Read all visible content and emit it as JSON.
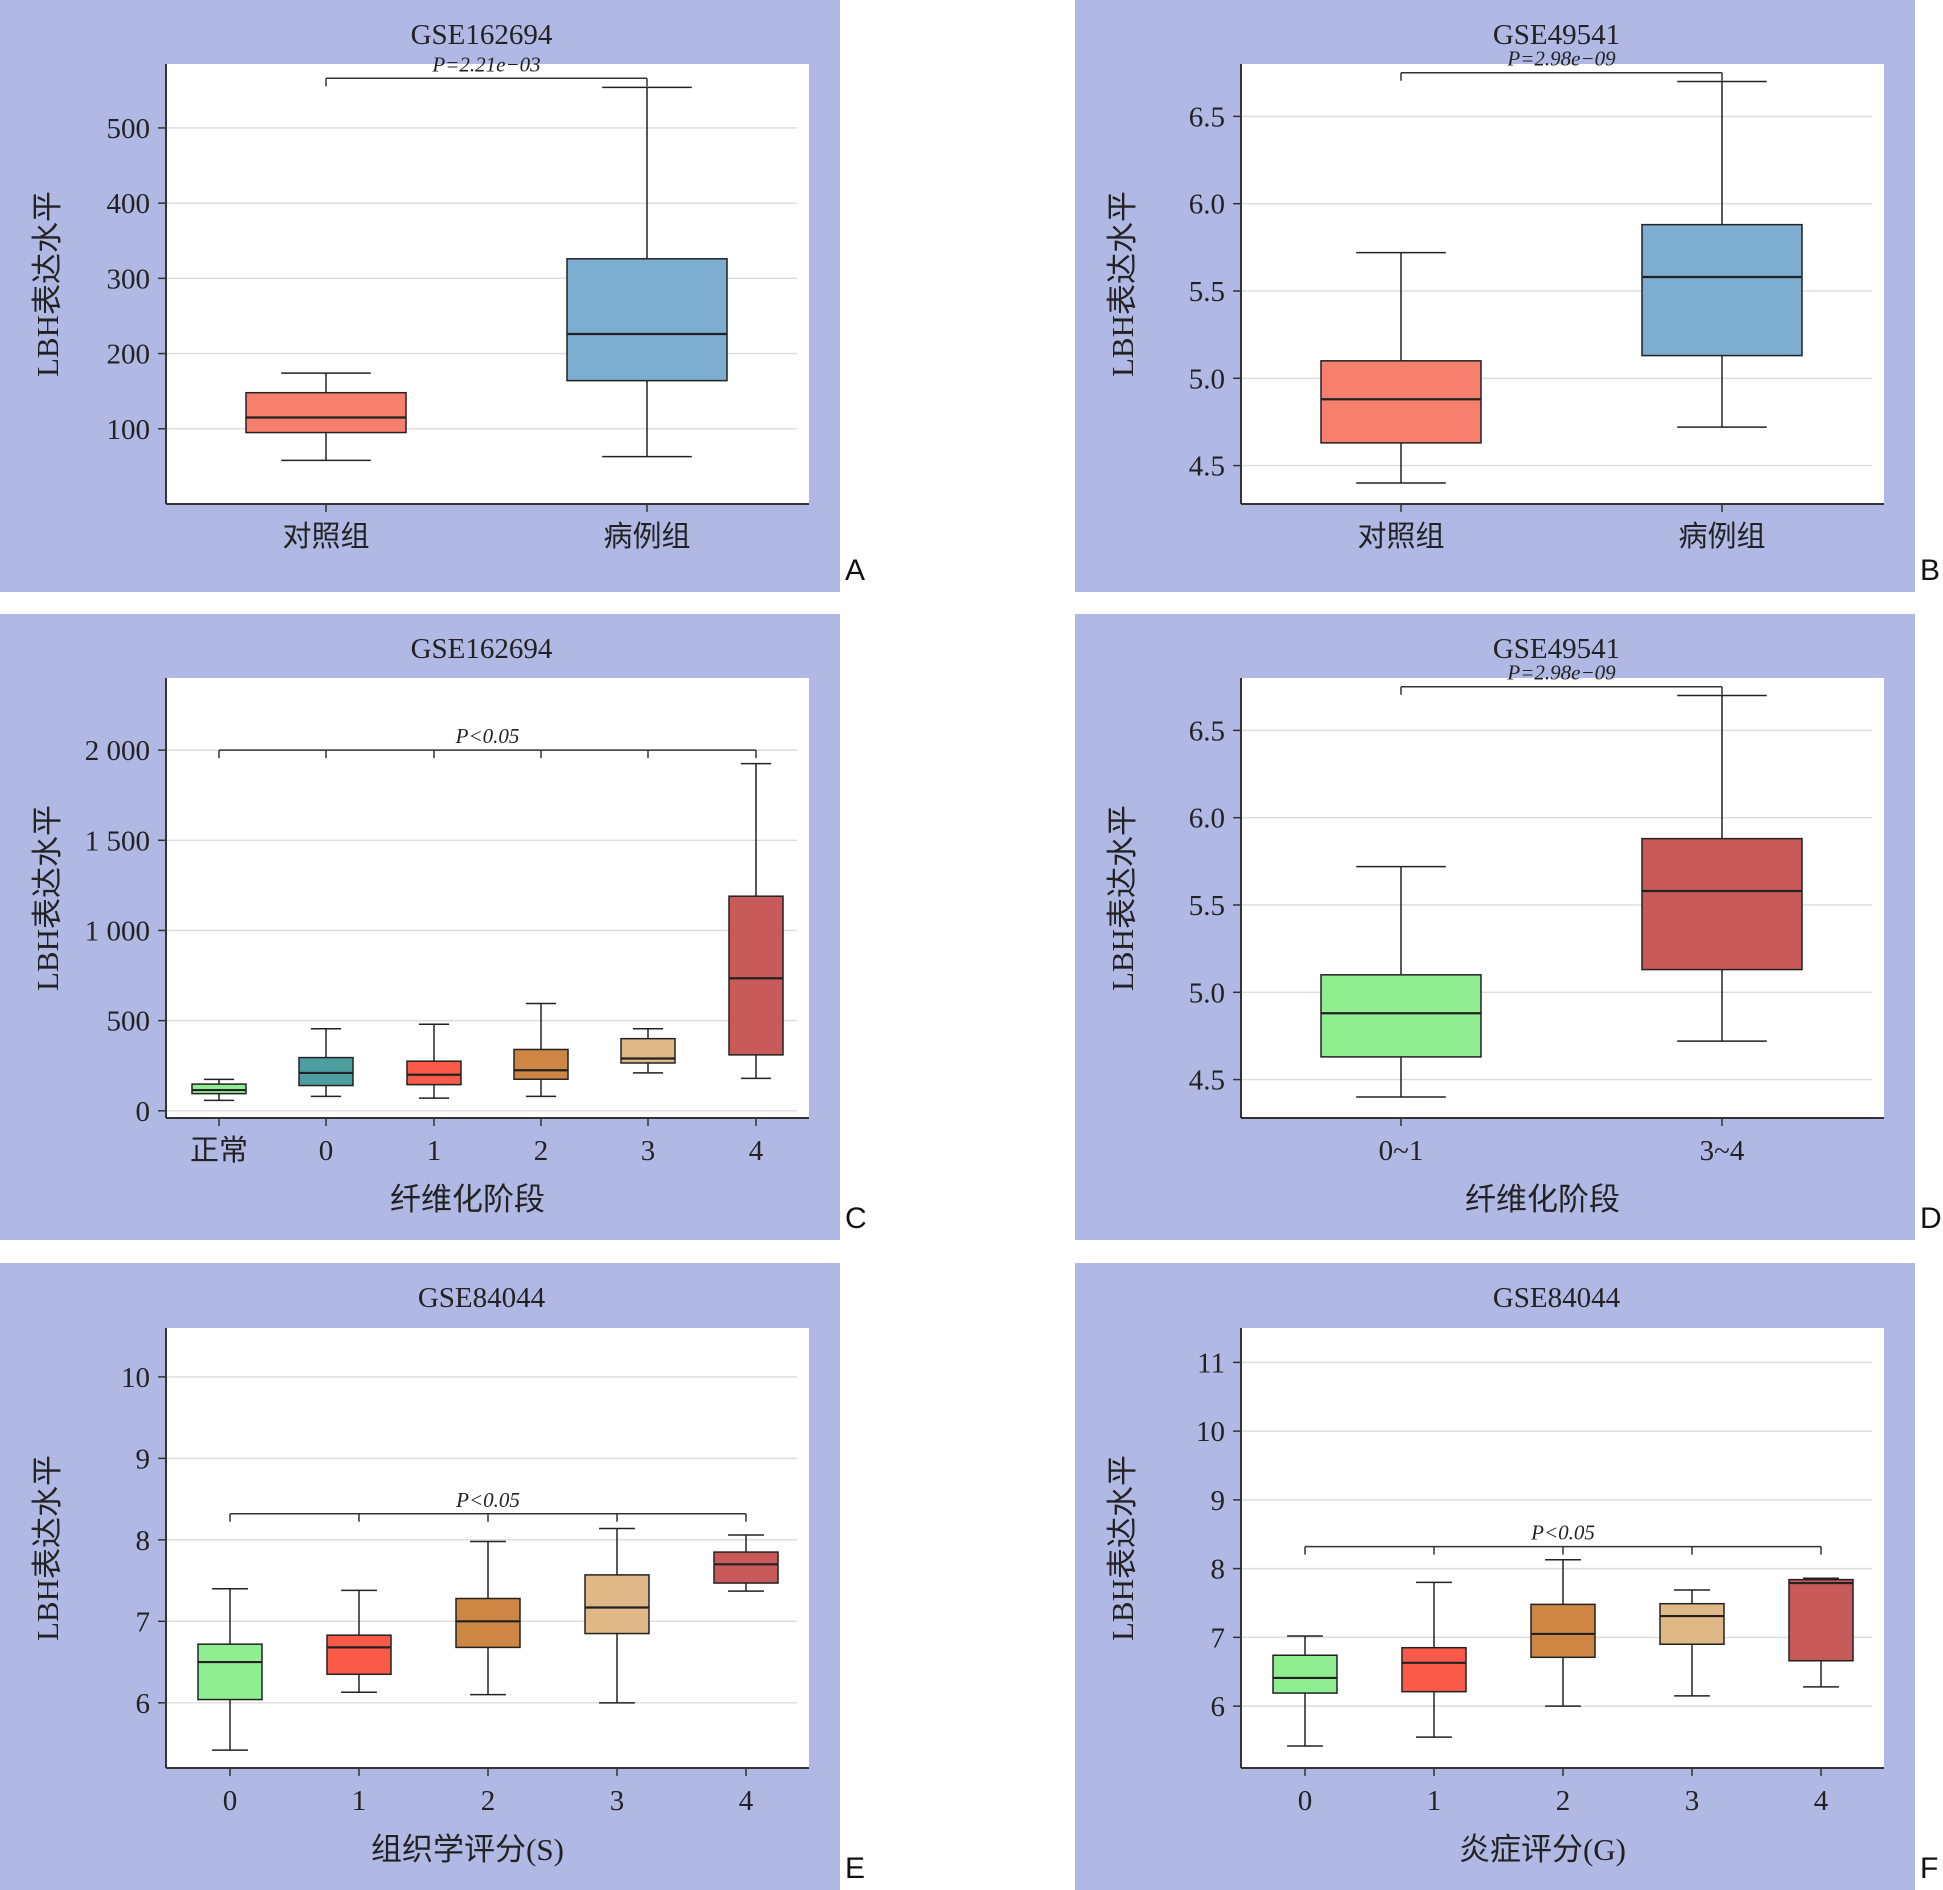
{
  "chart_data": [
    {
      "panel": "A",
      "type": "box",
      "title": "GSE162694",
      "ylabel": "LBH表达水平",
      "xlabel": "",
      "categories": [
        "对照组",
        "病例组"
      ],
      "boxes": [
        {
          "whisker_low": 58,
          "q1": 95,
          "median": 115,
          "q3": 148,
          "whisker_high": 174,
          "color": "#f67f6e"
        },
        {
          "whisker_low": 63,
          "q1": 164,
          "median": 226,
          "q3": 326,
          "whisker_high": 554,
          "color": "#7eadd2"
        }
      ],
      "ylim": [
        0,
        585
      ],
      "yticks": [
        100,
        200,
        300,
        400,
        500
      ],
      "ytick_labels": [
        "100",
        "200",
        "300",
        "400",
        "500"
      ],
      "annotations": [
        {
          "text": "P=2.21e−03",
          "from": 0,
          "to": 1,
          "y": 566
        }
      ]
    },
    {
      "panel": "B",
      "type": "box",
      "title": "GSE49541",
      "ylabel": "LBH表达水平",
      "xlabel": "",
      "categories": [
        "对照组",
        "病例组"
      ],
      "boxes": [
        {
          "whisker_low": 4.4,
          "q1": 4.63,
          "median": 4.88,
          "q3": 5.1,
          "whisker_high": 5.72,
          "color": "#f67f6e"
        },
        {
          "whisker_low": 4.72,
          "q1": 5.13,
          "median": 5.58,
          "q3": 5.88,
          "whisker_high": 6.7,
          "color": "#7eadd2"
        }
      ],
      "ylim": [
        4.28,
        6.8
      ],
      "yticks": [
        4.5,
        5.0,
        5.5,
        6.0,
        6.5
      ],
      "ytick_labels": [
        "4.5",
        "5.0",
        "5.5",
        "6.0",
        "6.5"
      ],
      "annotations": [
        {
          "text": "P=2.98e−09",
          "from": 0,
          "to": 1,
          "y": 6.75
        }
      ]
    },
    {
      "panel": "C",
      "type": "box",
      "title": "GSE162694",
      "ylabel": "LBH表达水平",
      "xlabel": "纤维化阶段",
      "categories": [
        "正常",
        "0",
        "1",
        "2",
        "3",
        "4"
      ],
      "boxes": [
        {
          "whisker_low": 58,
          "q1": 95,
          "median": 115,
          "q3": 148,
          "whisker_high": 174,
          "color": "#90ee90"
        },
        {
          "whisker_low": 80,
          "q1": 140,
          "median": 210,
          "q3": 295,
          "whisker_high": 455,
          "color": "#4d9ea0"
        },
        {
          "whisker_low": 70,
          "q1": 145,
          "median": 200,
          "q3": 275,
          "whisker_high": 480,
          "color": "#fc5a48"
        },
        {
          "whisker_low": 80,
          "q1": 175,
          "median": 225,
          "q3": 340,
          "whisker_high": 595,
          "color": "#cd8644"
        },
        {
          "whisker_low": 210,
          "q1": 265,
          "median": 290,
          "q3": 400,
          "whisker_high": 455,
          "color": "#deb887"
        },
        {
          "whisker_low": 180,
          "q1": 310,
          "median": 735,
          "q3": 1190,
          "whisker_high": 1925,
          "color": "#c85a5a"
        }
      ],
      "ylim": [
        -40,
        2400
      ],
      "yticks": [
        0,
        500,
        1000,
        1500,
        2000
      ],
      "ytick_labels": [
        "0",
        "500",
        "1 000",
        "1 500",
        "2 000"
      ],
      "annotations": [
        {
          "text": "P<0.05",
          "from": 0,
          "to": 5,
          "y": 2000
        }
      ]
    },
    {
      "panel": "D",
      "type": "box",
      "title": "GSE49541",
      "ylabel": "LBH表达水平",
      "xlabel": "纤维化阶段",
      "categories": [
        "0~1",
        "3~4"
      ],
      "boxes": [
        {
          "whisker_low": 4.4,
          "q1": 4.63,
          "median": 4.88,
          "q3": 5.1,
          "whisker_high": 5.72,
          "color": "#90ee90"
        },
        {
          "whisker_low": 4.72,
          "q1": 5.13,
          "median": 5.58,
          "q3": 5.88,
          "whisker_high": 6.7,
          "color": "#c85a5a"
        }
      ],
      "ylim": [
        4.28,
        6.8
      ],
      "yticks": [
        4.5,
        5.0,
        5.5,
        6.0,
        6.5
      ],
      "ytick_labels": [
        "4.5",
        "5.0",
        "5.5",
        "6.0",
        "6.5"
      ],
      "annotations": [
        {
          "text": "P=2.98e−09",
          "from": 0,
          "to": 1,
          "y": 6.75
        }
      ]
    },
    {
      "panel": "E",
      "type": "box",
      "title": "GSE84044",
      "ylabel": "LBH表达水平",
      "xlabel": "组织学评分(S)",
      "categories": [
        "0",
        "1",
        "2",
        "3",
        "4"
      ],
      "boxes": [
        {
          "whisker_low": 5.42,
          "q1": 6.04,
          "median": 6.5,
          "q3": 6.72,
          "whisker_high": 7.4,
          "color": "#90ee90"
        },
        {
          "whisker_low": 6.13,
          "q1": 6.35,
          "median": 6.68,
          "q3": 6.83,
          "whisker_high": 7.38,
          "color": "#fc5a48"
        },
        {
          "whisker_low": 6.1,
          "q1": 6.68,
          "median": 7.0,
          "q3": 7.28,
          "whisker_high": 7.98,
          "color": "#cd8644"
        },
        {
          "whisker_low": 6.0,
          "q1": 6.85,
          "median": 7.17,
          "q3": 7.57,
          "whisker_high": 8.14,
          "color": "#deb887"
        },
        {
          "whisker_low": 7.37,
          "q1": 7.47,
          "median": 7.7,
          "q3": 7.85,
          "whisker_high": 8.06,
          "color": "#c85a5a"
        }
      ],
      "ylim": [
        5.2,
        10.6
      ],
      "yticks": [
        6,
        7,
        8,
        9,
        10
      ],
      "ytick_labels": [
        "6",
        "7",
        "8",
        "9",
        "10"
      ],
      "annotations": [
        {
          "text": "P<0.05",
          "from": 0,
          "to": 4,
          "y": 8.32
        }
      ]
    },
    {
      "panel": "F",
      "type": "box",
      "title": "GSE84044",
      "ylabel": "LBH表达水平",
      "xlabel": "炎症评分(G)",
      "categories": [
        "0",
        "1",
        "2",
        "3",
        "4"
      ],
      "boxes": [
        {
          "whisker_low": 5.42,
          "q1": 6.19,
          "median": 6.41,
          "q3": 6.74,
          "whisker_high": 7.02,
          "color": "#90ee90"
        },
        {
          "whisker_low": 5.55,
          "q1": 6.21,
          "median": 6.63,
          "q3": 6.85,
          "whisker_high": 7.8,
          "color": "#fc5a48"
        },
        {
          "whisker_low": 6.0,
          "q1": 6.71,
          "median": 7.05,
          "q3": 7.48,
          "whisker_high": 8.13,
          "color": "#cd8644"
        },
        {
          "whisker_low": 6.15,
          "q1": 6.9,
          "median": 7.31,
          "q3": 7.49,
          "whisker_high": 7.69,
          "color": "#deb887"
        },
        {
          "whisker_low": 6.28,
          "q1": 6.66,
          "median": 7.79,
          "q3": 7.84,
          "whisker_high": 7.86,
          "color": "#c85a5a"
        }
      ],
      "ylim": [
        5.1,
        11.5
      ],
      "yticks": [
        6,
        7,
        8,
        9,
        10,
        11
      ],
      "ytick_labels": [
        "6",
        "7",
        "8",
        "9",
        "10",
        "11"
      ],
      "annotations": [
        {
          "text": "P<0.05",
          "from": 0,
          "to": 4,
          "y": 8.32
        }
      ]
    }
  ]
}
